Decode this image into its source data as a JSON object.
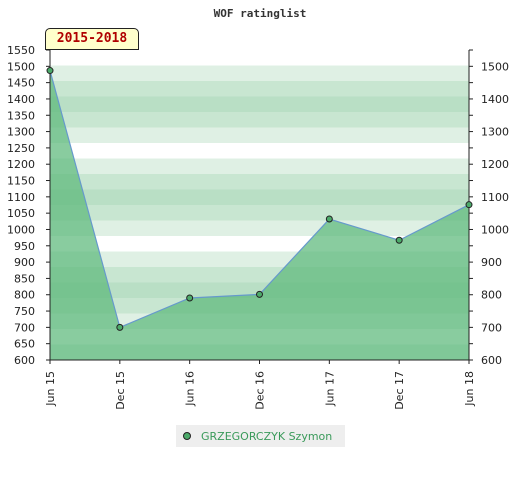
{
  "chart_data": {
    "type": "area",
    "title": "WOF ratinglist",
    "period_label": "2015-2018",
    "categories": [
      "Jun 15",
      "Dec 15",
      "Jun 16",
      "Dec 16",
      "Jun 17",
      "Dec 17",
      "Jun 18"
    ],
    "series": [
      {
        "name": "GRZEGORCZYK Szymon",
        "values": [
          1487,
          700,
          790,
          801,
          1032,
          967,
          1076
        ]
      }
    ],
    "left_axis": {
      "ylim": [
        600,
        1550
      ],
      "ticks": [
        600,
        650,
        700,
        750,
        800,
        850,
        900,
        950,
        1000,
        1050,
        1100,
        1150,
        1200,
        1250,
        1300,
        1350,
        1400,
        1450,
        1500,
        1550
      ]
    },
    "right_axis": {
      "ylim": [
        600,
        1550
      ],
      "ticks": [
        600,
        700,
        800,
        900,
        1000,
        1100,
        1200,
        1300,
        1400,
        1500
      ]
    },
    "grid": true,
    "legend_position": "bottom-center",
    "colors": {
      "fill": "#5cb87a",
      "line": "#6699cc",
      "marker": "#4caa6a",
      "stripe_dark": "#b9dfc5",
      "stripe_light": "#ffffff"
    }
  }
}
